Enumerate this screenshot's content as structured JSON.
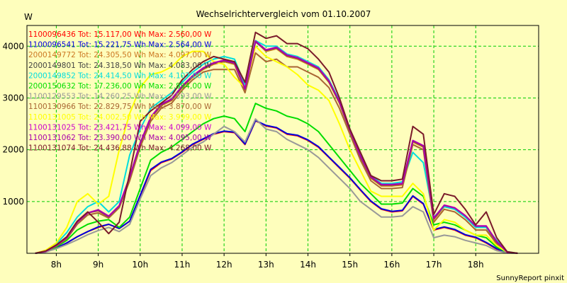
{
  "chart_data": {
    "type": "line",
    "title": "Wechselrichtervergleich vom 01.10.2007",
    "ylabel": "W",
    "footer": "SunnyReport pinxit",
    "xlim": [
      7.3,
      19.5
    ],
    "ylim": [
      0,
      4400
    ],
    "y_ticks": [
      1000,
      2000,
      3000,
      4000
    ],
    "x_ticks": [
      {
        "label": "8h",
        "value": 8
      },
      {
        "label": "9h",
        "value": 9
      },
      {
        "label": "10h",
        "value": 10
      },
      {
        "label": "11h",
        "value": 11
      },
      {
        "label": "12h",
        "value": 12
      },
      {
        "label": "13h",
        "value": 13
      },
      {
        "label": "14h",
        "value": 14
      },
      {
        "label": "15h",
        "value": 15
      },
      {
        "label": "16h",
        "value": 16
      },
      {
        "label": "17h",
        "value": 17
      },
      {
        "label": "18h",
        "value": 18
      }
    ],
    "grid": true,
    "x": [
      7.5,
      7.75,
      8,
      8.25,
      8.5,
      8.75,
      9,
      9.25,
      9.5,
      9.75,
      10,
      10.25,
      10.5,
      10.75,
      11,
      11.25,
      11.5,
      11.75,
      12,
      12.25,
      12.5,
      12.75,
      13,
      13.25,
      13.5,
      13.75,
      14,
      14.25,
      14.5,
      14.75,
      15,
      15.25,
      15.5,
      15.75,
      16,
      16.25,
      16.5,
      16.75,
      17,
      17.25,
      17.5,
      17.75,
      18,
      18.25,
      18.5,
      18.75,
      19
    ],
    "series": [
      {
        "name": "1100096436 Tot: 15.117,00 Wh Max: 2.560,00 W",
        "color": "#ff0000",
        "values": [
          0,
          30,
          100,
          200,
          320,
          420,
          500,
          560,
          480,
          620,
          1100,
          1600,
          1750,
          1820,
          1950,
          2100,
          2200,
          2300,
          2350,
          2330,
          2100,
          2560,
          2460,
          2420,
          2300,
          2270,
          2180,
          2050,
          1850,
          1650,
          1450,
          1220,
          1000,
          850,
          800,
          820,
          1100,
          950,
          450,
          500,
          450,
          350,
          300,
          200,
          80,
          10,
          0
        ]
      },
      {
        "name": "1100096541 Tot: 15.221,75 Wh Max: 2.564,00 W",
        "color": "#0000dd",
        "values": [
          0,
          30,
          100,
          200,
          320,
          420,
          510,
          560,
          480,
          620,
          1120,
          1620,
          1760,
          1830,
          1960,
          2110,
          2210,
          2310,
          2360,
          2340,
          2110,
          2564,
          2470,
          2430,
          2310,
          2280,
          2190,
          2060,
          1860,
          1660,
          1460,
          1230,
          1010,
          860,
          810,
          830,
          1110,
          960,
          460,
          510,
          460,
          360,
          310,
          210,
          90,
          10,
          0
        ]
      },
      {
        "name": "2000149772 Tot: 24.305,50 Wh Max: 4.097,00 W",
        "color": "#cc7722",
        "values": [
          0,
          40,
          150,
          300,
          600,
          780,
          820,
          700,
          900,
          1450,
          2100,
          2600,
          2850,
          2950,
          3200,
          3400,
          3550,
          3650,
          3700,
          3650,
          3150,
          4097,
          3900,
          3950,
          3800,
          3750,
          3650,
          3550,
          3300,
          2900,
          2350,
          1850,
          1450,
          1300,
          1300,
          1320,
          2150,
          2050,
          650,
          900,
          850,
          700,
          500,
          500,
          200,
          20,
          0
        ]
      },
      {
        "name": "2000149801 Tot: 24.318,50 Wh Max: 4.083,00 W",
        "color": "#444444",
        "values": [
          0,
          40,
          150,
          300,
          600,
          780,
          830,
          710,
          910,
          1470,
          2120,
          2620,
          2870,
          2970,
          3220,
          3420,
          3570,
          3670,
          3720,
          3670,
          3170,
          4083,
          3920,
          3970,
          3820,
          3770,
          3670,
          3570,
          3320,
          2920,
          2370,
          1870,
          1470,
          1320,
          1320,
          1340,
          2170,
          2070,
          670,
          920,
          870,
          720,
          520,
          520,
          220,
          20,
          0
        ]
      },
      {
        "name": "2000149852 Tot: 24.414,50 Wh Max: 4.107,00 W",
        "color": "#00dddd",
        "values": [
          0,
          50,
          180,
          400,
          700,
          900,
          1000,
          800,
          1000,
          1900,
          2400,
          2800,
          2950,
          3100,
          3300,
          3500,
          3650,
          3750,
          3800,
          3750,
          3250,
          4107,
          4000,
          4000,
          3850,
          3800,
          3700,
          3600,
          3350,
          2950,
          2400,
          1900,
          1500,
          1350,
          1350,
          1380,
          1950,
          1750,
          700,
          900,
          850,
          700,
          500,
          500,
          250,
          30,
          0
        ]
      },
      {
        "name": "2000150632 Tot: 17.236,00 Wh Max: 2.894,00 W",
        "color": "#00dd00",
        "values": [
          0,
          30,
          120,
          250,
          450,
          560,
          620,
          650,
          500,
          700,
          1250,
          1800,
          1950,
          2050,
          2200,
          2350,
          2500,
          2600,
          2650,
          2600,
          2350,
          2894,
          2800,
          2750,
          2650,
          2600,
          2500,
          2350,
          2100,
          1850,
          1600,
          1350,
          1150,
          950,
          950,
          970,
          1250,
          1100,
          550,
          600,
          550,
          450,
          350,
          300,
          120,
          15,
          0
        ]
      },
      {
        "name": "1100129553 Tot: 14.260,25 Wh Max: 2.593,00 W",
        "color": "#999999",
        "values": [
          0,
          25,
          90,
          170,
          260,
          360,
          440,
          500,
          420,
          560,
          1050,
          1500,
          1650,
          1750,
          1900,
          2050,
          2150,
          2300,
          2450,
          2350,
          2150,
          2593,
          2400,
          2350,
          2200,
          2100,
          2000,
          1850,
          1650,
          1450,
          1250,
          1000,
          850,
          700,
          700,
          720,
          900,
          800,
          300,
          350,
          320,
          250,
          200,
          150,
          50,
          5,
          0
        ]
      },
      {
        "name": "1100130966 Tot: 22.829,75 Wh Max: 3.870,00 W",
        "color": "#aa6633",
        "values": [
          0,
          40,
          140,
          280,
          560,
          740,
          780,
          680,
          880,
          1400,
          2050,
          2550,
          2800,
          2900,
          3150,
          3350,
          3500,
          3550,
          3550,
          3550,
          3100,
          3870,
          3700,
          3750,
          3600,
          3600,
          3500,
          3400,
          3200,
          2800,
          2300,
          1800,
          1400,
          1250,
          1250,
          1270,
          2100,
          2000,
          600,
          850,
          800,
          650,
          450,
          450,
          180,
          20,
          0
        ]
      },
      {
        "name": "1100131005 Tot: 24.002,50 Wh Max: 3.999,00 W",
        "color": "#ffff00",
        "values": [
          0,
          60,
          200,
          500,
          1000,
          1150,
          950,
          1100,
          2000,
          2700,
          3200,
          3450,
          3500,
          3600,
          3800,
          3900,
          3900,
          3700,
          3650,
          3400,
          3200,
          3999,
          3800,
          3700,
          3600,
          3450,
          3250,
          3150,
          2950,
          2500,
          2000,
          1600,
          1200,
          1100,
          1100,
          1100,
          1350,
          1150,
          450,
          650,
          600,
          450,
          350,
          350,
          150,
          20,
          0
        ]
      },
      {
        "name": "1100131025 Tot: 23.421,75 Wh Max: 4.099,00 W",
        "color": "#cc00cc",
        "values": [
          0,
          40,
          150,
          300,
          600,
          780,
          840,
          720,
          920,
          1480,
          2130,
          2630,
          2880,
          2980,
          3230,
          3430,
          3580,
          3680,
          3730,
          3680,
          3180,
          4099,
          3930,
          3980,
          3830,
          3780,
          3680,
          3580,
          3330,
          2930,
          2380,
          1880,
          1480,
          1330,
          1330,
          1350,
          2180,
          2080,
          680,
          930,
          880,
          730,
          530,
          530,
          230,
          20,
          0
        ]
      },
      {
        "name": "1100131062 Tot: 23.390,00 Wh Max: 4.095,00 W",
        "color": "#aa00aa",
        "values": [
          0,
          40,
          150,
          300,
          600,
          780,
          835,
          715,
          915,
          1475,
          2125,
          2625,
          2875,
          2975,
          3225,
          3425,
          3575,
          3675,
          3725,
          3675,
          3175,
          4095,
          3925,
          3975,
          3825,
          3775,
          3675,
          3575,
          3325,
          2925,
          2375,
          1875,
          1475,
          1325,
          1325,
          1345,
          2175,
          2075,
          675,
          925,
          875,
          725,
          525,
          525,
          225,
          20,
          0
        ]
      },
      {
        "name": "1100131074 Tot: 24.436,88 Wh Max: 4.268,00 W",
        "color": "#7a1a2a",
        "values": [
          0,
          45,
          160,
          320,
          620,
          800,
          600,
          380,
          600,
          1550,
          2550,
          2750,
          2900,
          3050,
          3350,
          3550,
          3700,
          3800,
          3750,
          3700,
          3300,
          4268,
          4150,
          4200,
          4050,
          4050,
          3950,
          3750,
          3500,
          3000,
          2400,
          1950,
          1500,
          1400,
          1400,
          1430,
          2450,
          2300,
          750,
          1150,
          1100,
          850,
          550,
          800,
          300,
          30,
          0
        ]
      }
    ]
  }
}
